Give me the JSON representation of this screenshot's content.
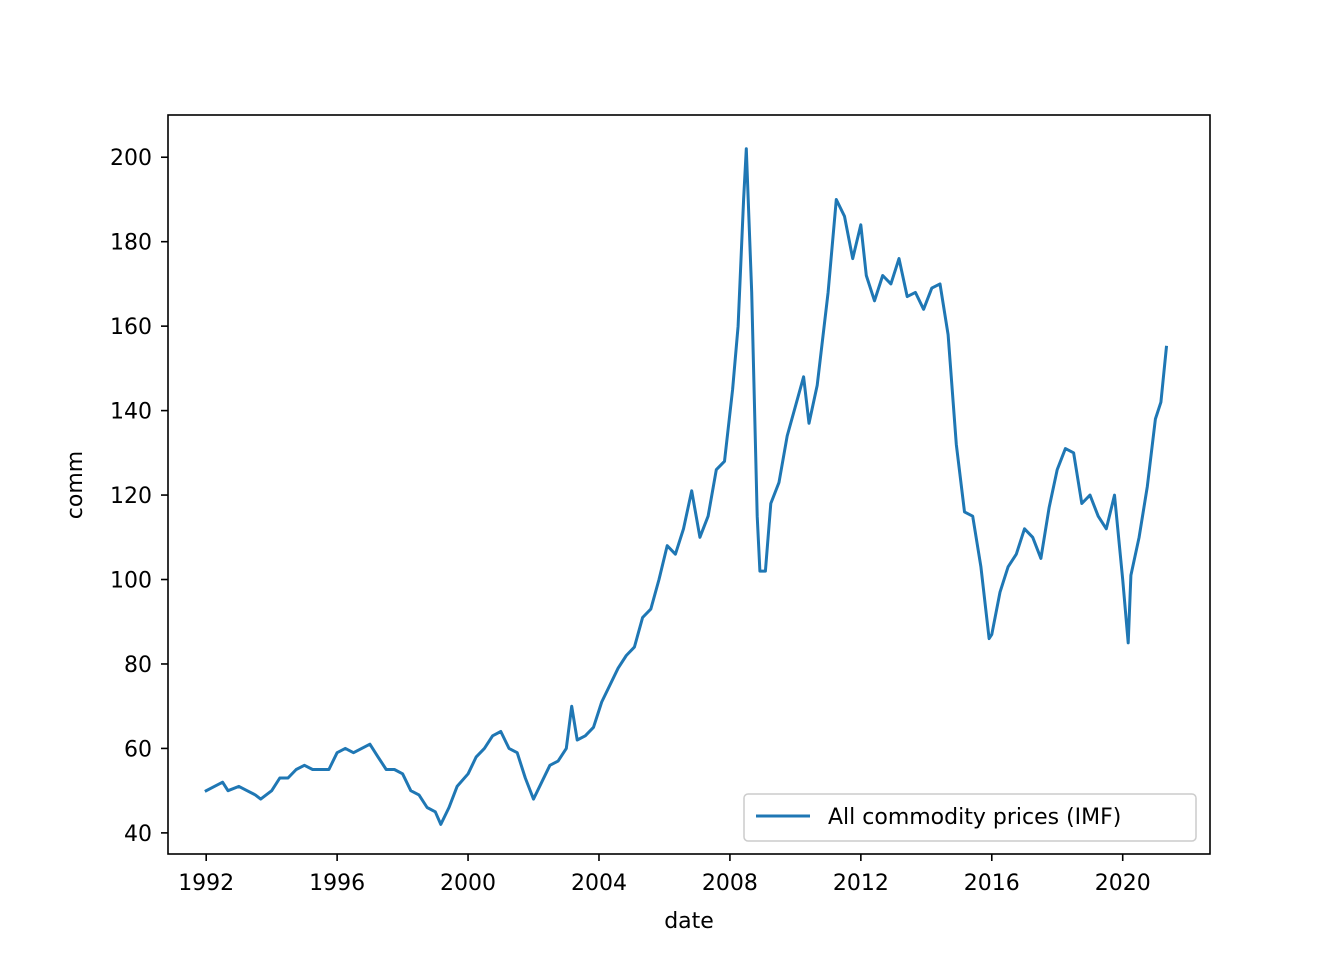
{
  "chart_data": {
    "type": "line",
    "title": "",
    "xlabel": "date",
    "ylabel": "comm",
    "xlim": [
      "1990-11-01",
      "2022-09-01"
    ],
    "ylim": [
      35,
      210
    ],
    "x_ticks": [
      "1992",
      "1996",
      "2000",
      "2004",
      "2008",
      "2012",
      "2016",
      "2020"
    ],
    "y_ticks": [
      40,
      60,
      80,
      100,
      120,
      140,
      160,
      180,
      200
    ],
    "grid": false,
    "legend": {
      "position": "lower-right"
    },
    "series": [
      {
        "name": "All commodity prices (IMF)",
        "color": "#1f77b4",
        "x": [
          "1992-01",
          "1992-04",
          "1992-07",
          "1992-09",
          "1993-01",
          "1993-04",
          "1993-07",
          "1993-09",
          "1994-01",
          "1994-04",
          "1994-07",
          "1994-10",
          "1995-01",
          "1995-04",
          "1995-07",
          "1995-10",
          "1996-01",
          "1996-04",
          "1996-07",
          "1996-10",
          "1997-01",
          "1997-04",
          "1997-07",
          "1997-10",
          "1998-01",
          "1998-04",
          "1998-07",
          "1998-10",
          "1999-01",
          "1999-03",
          "1999-06",
          "1999-09",
          "2000-01",
          "2000-04",
          "2000-07",
          "2000-10",
          "2001-01",
          "2001-04",
          "2001-07",
          "2001-10",
          "2002-01",
          "2002-04",
          "2002-07",
          "2002-10",
          "2003-01",
          "2003-03",
          "2003-05",
          "2003-08",
          "2003-11",
          "2004-02",
          "2004-05",
          "2004-08",
          "2004-11",
          "2005-02",
          "2005-05",
          "2005-08",
          "2005-11",
          "2006-02",
          "2006-05",
          "2006-08",
          "2006-11",
          "2007-02",
          "2007-05",
          "2007-08",
          "2007-11",
          "2008-02",
          "2008-04",
          "2008-06",
          "2008-07",
          "2008-09",
          "2008-11",
          "2008-12",
          "2009-02",
          "2009-04",
          "2009-07",
          "2009-10",
          "2010-01",
          "2010-04",
          "2010-06",
          "2010-09",
          "2011-01",
          "2011-04",
          "2011-07",
          "2011-10",
          "2012-01",
          "2012-03",
          "2012-06",
          "2012-09",
          "2012-12",
          "2013-03",
          "2013-06",
          "2013-09",
          "2013-12",
          "2014-03",
          "2014-06",
          "2014-09",
          "2014-12",
          "2015-03",
          "2015-06",
          "2015-09",
          "2015-12",
          "2016-01",
          "2016-04",
          "2016-07",
          "2016-10",
          "2017-01",
          "2017-04",
          "2017-07",
          "2017-10",
          "2018-01",
          "2018-04",
          "2018-07",
          "2018-10",
          "2019-01",
          "2019-04",
          "2019-07",
          "2019-10",
          "2020-01",
          "2020-03",
          "2020-04",
          "2020-07",
          "2020-10",
          "2021-01",
          "2021-03",
          "2021-05"
        ],
        "values": [
          50,
          51,
          52,
          50,
          51,
          50,
          49,
          48,
          50,
          53,
          53,
          55,
          56,
          55,
          55,
          55,
          59,
          60,
          59,
          60,
          61,
          58,
          55,
          55,
          54,
          50,
          49,
          46,
          45,
          42,
          46,
          51,
          54,
          58,
          60,
          63,
          64,
          60,
          59,
          53,
          48,
          52,
          56,
          57,
          60,
          70,
          62,
          63,
          65,
          71,
          75,
          79,
          82,
          84,
          91,
          93,
          100,
          108,
          106,
          112,
          121,
          110,
          115,
          126,
          128,
          145,
          160,
          190,
          202,
          168,
          115,
          102,
          102,
          118,
          123,
          134,
          141,
          148,
          137,
          146,
          168,
          190,
          186,
          176,
          184,
          172,
          166,
          172,
          170,
          176,
          167,
          168,
          164,
          169,
          170,
          158,
          132,
          116,
          115,
          103,
          86,
          87,
          97,
          103,
          106,
          112,
          110,
          105,
          117,
          126,
          131,
          130,
          118,
          120,
          115,
          112,
          120,
          100,
          85,
          101,
          110,
          122,
          138,
          142,
          155
        ]
      }
    ]
  }
}
